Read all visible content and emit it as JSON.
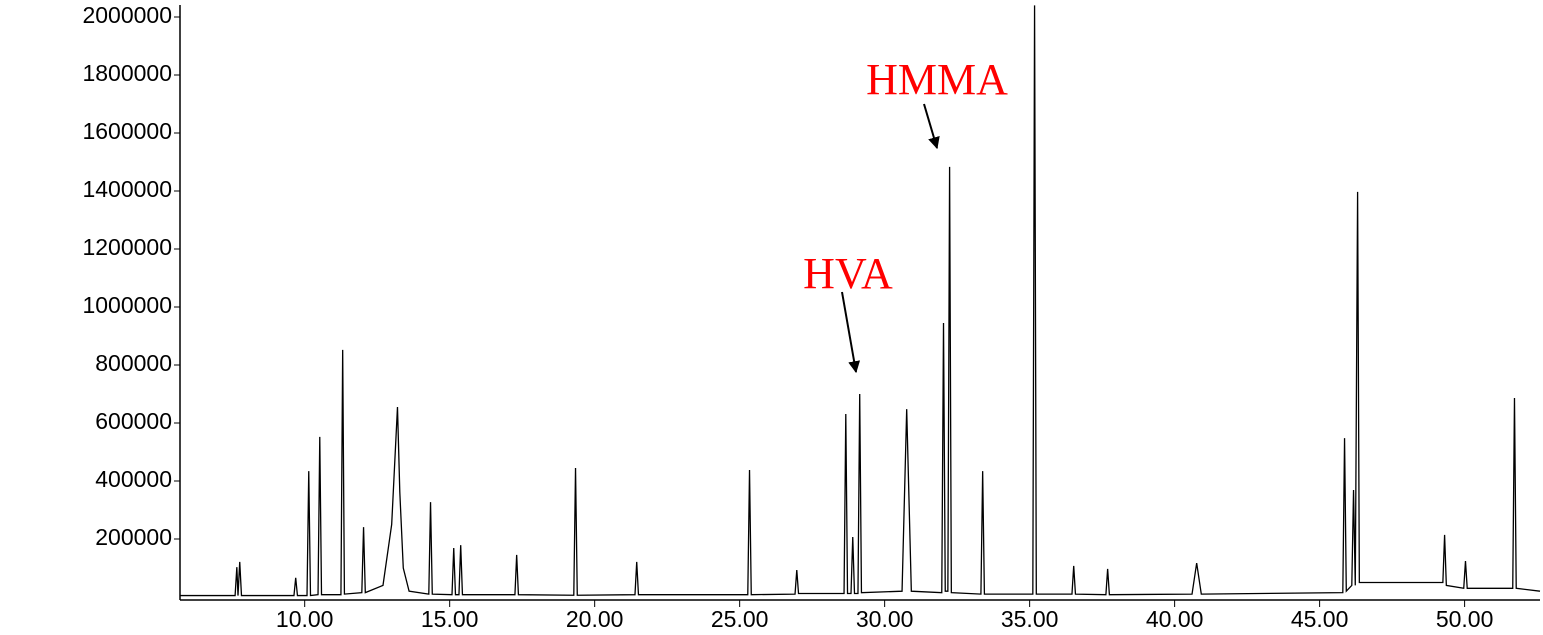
{
  "chart_data": {
    "type": "line",
    "annotations": [
      "HVA",
      "HMMA"
    ],
    "annotation_color": "#ff0000",
    "series": [
      {
        "color": "#000000",
        "x": [
          5.7,
          7.6,
          7.66,
          7.7,
          7.76,
          7.82,
          9.63,
          9.69,
          9.75,
          10.08,
          10.14,
          10.2,
          10.46,
          10.52,
          10.58,
          11.25,
          11.31,
          11.37,
          11.97,
          12.03,
          12.09,
          12.7,
          13.0,
          13.2,
          13.28,
          13.4,
          13.6,
          14.28,
          14.34,
          14.4,
          15.08,
          15.14,
          15.2,
          15.32,
          15.38,
          15.44,
          17.25,
          17.31,
          17.37,
          19.28,
          19.34,
          19.4,
          21.39,
          21.45,
          21.51,
          25.28,
          25.34,
          25.4,
          26.91,
          26.97,
          27.03,
          28.6,
          28.66,
          28.72,
          28.84,
          28.9,
          28.96,
          29.08,
          29.14,
          29.2,
          30.6,
          30.76,
          30.92,
          31.97,
          32.03,
          32.09,
          32.18,
          32.24,
          32.3,
          33.32,
          33.38,
          33.44,
          35.11,
          35.17,
          35.23,
          36.46,
          36.52,
          36.58,
          37.63,
          37.69,
          37.75,
          40.6,
          40.76,
          40.92,
          45.8,
          45.86,
          45.92,
          46.11,
          46.17,
          46.23,
          46.31,
          46.37,
          49.25,
          49.31,
          49.37,
          49.97,
          50.03,
          50.09,
          51.66,
          51.72,
          51.78,
          52.6
        ],
        "values": [
          5000,
          5000,
          103000,
          5000,
          121000,
          5000,
          5000,
          66000,
          5000,
          5000,
          434000,
          5000,
          8000,
          552000,
          8000,
          8000,
          852000,
          10000,
          15000,
          241000,
          15000,
          40000,
          250000,
          655000,
          362000,
          100000,
          20000,
          10000,
          327000,
          10000,
          8000,
          169000,
          8000,
          8000,
          179000,
          8000,
          8000,
          145000,
          8000,
          6000,
          445000,
          6000,
          8000,
          121000,
          8000,
          8000,
          438000,
          8000,
          10000,
          93000,
          12000,
          12000,
          631000,
          12000,
          12000,
          207000,
          12000,
          12000,
          700000,
          15000,
          20000,
          648000,
          20000,
          15000,
          945000,
          20000,
          20000,
          1483000,
          15000,
          10000,
          434000,
          10000,
          10000,
          2040000,
          10000,
          10000,
          107000,
          10000,
          8000,
          97000,
          8000,
          10000,
          117000,
          10000,
          15000,
          548000,
          20000,
          40000,
          369000,
          40000,
          1397000,
          50000,
          50000,
          214000,
          40000,
          30000,
          124000,
          30000,
          30000,
          686000,
          30000,
          20000
        ]
      }
    ],
    "xlim": [
      5.7,
      52.6
    ],
    "ylim": [
      0,
      2040000
    ],
    "xticks": [
      {
        "value": 10,
        "label": "10.00"
      },
      {
        "value": 15,
        "label": "15.00"
      },
      {
        "value": 20,
        "label": "20.00"
      },
      {
        "value": 25,
        "label": "25.00"
      },
      {
        "value": 30,
        "label": "30.00"
      },
      {
        "value": 35,
        "label": "35.00"
      },
      {
        "value": 40,
        "label": "40.00"
      },
      {
        "value": 45,
        "label": "45.00"
      },
      {
        "value": 50,
        "label": "50.00"
      }
    ],
    "yticks": [
      200000,
      400000,
      600000,
      800000,
      1000000,
      1200000,
      1400000,
      1600000,
      1800000,
      2000000
    ]
  }
}
